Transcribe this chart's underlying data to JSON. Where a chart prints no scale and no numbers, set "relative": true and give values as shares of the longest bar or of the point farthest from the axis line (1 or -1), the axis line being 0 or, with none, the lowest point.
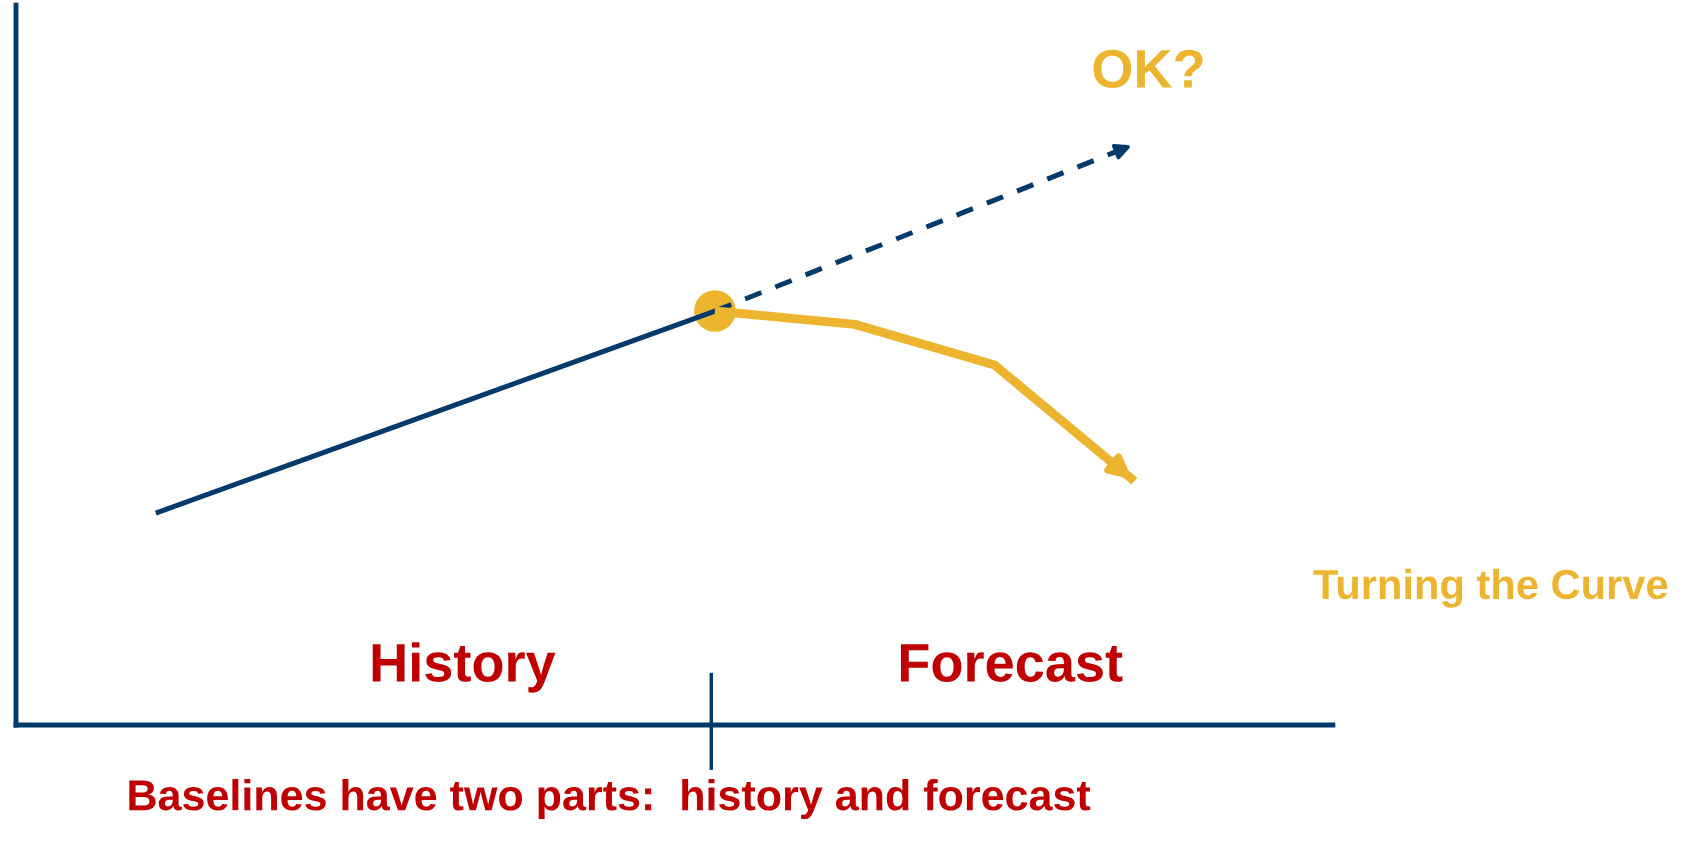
{
  "chart_data": {
    "type": "line",
    "relative": true,
    "grid": false,
    "categories": [
      null,
      null,
      null,
      null,
      null,
      null,
      null,
      null
    ],
    "series": [
      {
        "color": "#003a6b",
        "line_style": "solid",
        "values": [
          0.365,
          0.452,
          0.539,
          0.626,
          0.713,
          null,
          null,
          null
        ]
      },
      {
        "color": "#003a6b",
        "line_style": "dashed",
        "values": [
          null,
          null,
          null,
          null,
          0.713,
          0.809,
          0.904,
          1.0
        ]
      },
      {
        "color": "#edb52f",
        "line_style": "solid",
        "values": [
          null,
          null,
          null,
          null,
          0.713,
          0.69,
          0.62,
          0.42
        ]
      }
    ],
    "annotations": [
      "History",
      "Forecast",
      "OK?",
      "Turning the Curve"
    ],
    "xlabel": "Baselines have two parts:  history and forecast"
  }
}
